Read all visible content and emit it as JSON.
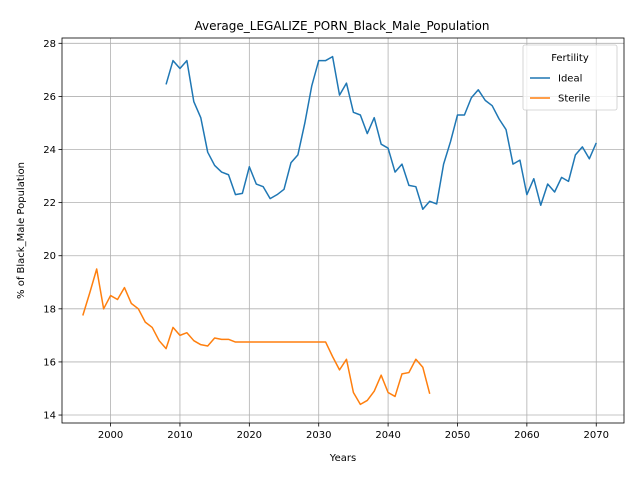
{
  "chart_data": {
    "type": "line",
    "title": "Average_LEGALIZE_PORN_Black_Male_Population",
    "xlabel": "Years",
    "ylabel": "% of Black_Male Population",
    "xlim": [
      1993,
      2074
    ],
    "ylim": [
      13.7,
      28.2
    ],
    "xticks": [
      2000,
      2010,
      2020,
      2030,
      2040,
      2050,
      2060,
      2070
    ],
    "yticks": [
      14,
      16,
      18,
      20,
      22,
      24,
      26,
      28
    ],
    "grid": true,
    "legend": {
      "title": "Fertility",
      "placement": "top-right"
    },
    "series": [
      {
        "name": "Ideal",
        "color": "#1f77b4",
        "x": [
          2008,
          2009,
          2010,
          2011,
          2012,
          2013,
          2014,
          2015,
          2016,
          2017,
          2018,
          2019,
          2020,
          2021,
          2022,
          2023,
          2024,
          2025,
          2026,
          2027,
          2028,
          2029,
          2030,
          2031,
          2032,
          2033,
          2034,
          2035,
          2036,
          2037,
          2038,
          2039,
          2040,
          2041,
          2042,
          2043,
          2044,
          2045,
          2046,
          2047,
          2048,
          2049,
          2050,
          2051,
          2052,
          2053,
          2054,
          2055,
          2056,
          2057,
          2058,
          2059,
          2060,
          2061,
          2062,
          2063,
          2064,
          2065,
          2066,
          2067,
          2068,
          2069,
          2070
        ],
        "values": [
          26.45,
          27.35,
          27.05,
          27.35,
          25.8,
          25.2,
          23.9,
          23.4,
          23.15,
          23.05,
          22.3,
          22.35,
          23.35,
          22.7,
          22.6,
          22.15,
          22.3,
          22.5,
          23.5,
          23.8,
          25.0,
          26.4,
          27.35,
          27.35,
          27.5,
          26.05,
          26.5,
          25.4,
          25.3,
          24.6,
          25.2,
          24.2,
          24.05,
          23.15,
          23.45,
          22.65,
          22.6,
          21.75,
          22.05,
          21.95,
          23.45,
          24.3,
          25.3,
          25.3,
          25.95,
          26.25,
          25.85,
          25.65,
          25.15,
          24.75,
          23.45,
          23.6,
          22.3,
          22.9,
          21.9,
          22.7,
          22.4,
          22.95,
          22.8,
          23.8,
          24.1,
          23.65,
          24.25
        ]
      },
      {
        "name": "Sterile",
        "color": "#ff7f0e",
        "x": [
          1996,
          1997,
          1998,
          1999,
          2000,
          2001,
          2002,
          2003,
          2004,
          2005,
          2006,
          2007,
          2008,
          2009,
          2010,
          2011,
          2012,
          2013,
          2014,
          2015,
          2016,
          2017,
          2018,
          2019,
          2020,
          2021,
          2022,
          2023,
          2024,
          2025,
          2026,
          2027,
          2028,
          2029,
          2030,
          2031,
          2032,
          2033,
          2034,
          2035,
          2036,
          2037,
          2038,
          2039,
          2040,
          2041,
          2042,
          2043,
          2044,
          2045,
          2046
        ],
        "values": [
          17.75,
          18.6,
          19.5,
          18.0,
          18.5,
          18.35,
          18.8,
          18.2,
          18.0,
          17.5,
          17.3,
          16.8,
          16.5,
          17.3,
          17.0,
          17.1,
          16.8,
          16.65,
          16.6,
          16.9,
          16.85,
          16.85,
          16.75,
          16.75,
          16.75,
          16.75,
          16.75,
          16.75,
          16.75,
          16.75,
          16.75,
          16.75,
          16.75,
          16.75,
          16.75,
          16.75,
          16.2,
          15.7,
          16.1,
          14.85,
          14.4,
          14.55,
          14.9,
          15.5,
          14.85,
          14.7,
          15.55,
          15.6,
          16.1,
          15.8,
          14.8
        ]
      }
    ]
  }
}
